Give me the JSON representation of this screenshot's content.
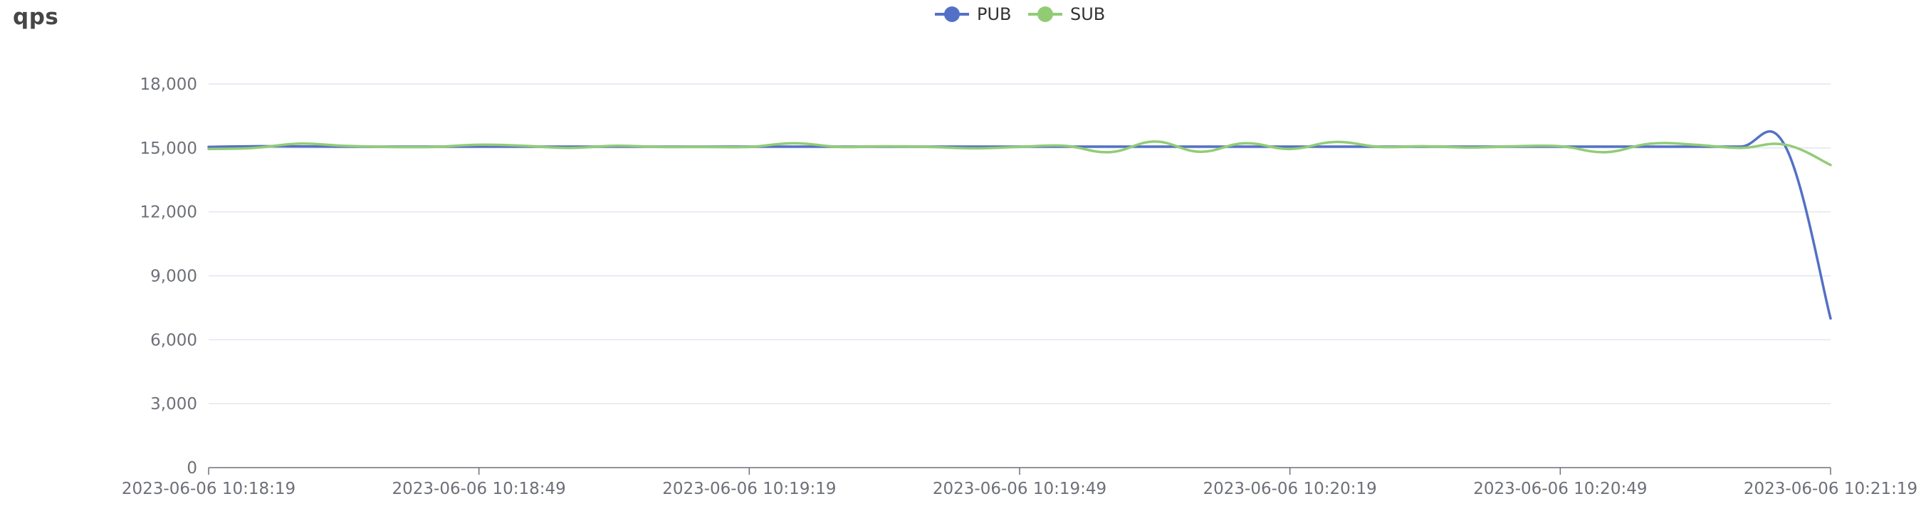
{
  "page": {
    "title": "qps"
  },
  "chart_data": {
    "type": "line",
    "title": "qps",
    "xlabel": "",
    "ylabel": "",
    "ylim": [
      0,
      18000
    ],
    "yticks": [
      0,
      3000,
      6000,
      9000,
      12000,
      15000,
      18000
    ],
    "ytick_labels": [
      "0",
      "3,000",
      "6,000",
      "9,000",
      "12,000",
      "15,000",
      "18,000"
    ],
    "x_tick_labels": [
      "2023-06-06 10:18:19",
      "2023-06-06 10:18:49",
      "2023-06-06 10:19:19",
      "2023-06-06 10:19:49",
      "2023-06-06 10:20:19",
      "2023-06-06 10:20:49",
      "2023-06-06 10:21:19"
    ],
    "x_start": "2023-06-06 10:18:19",
    "x_end": "2023-06-06 10:21:19",
    "x_interval_seconds": 5,
    "grid": true,
    "legend_position": "top-center",
    "series": [
      {
        "name": "PUB",
        "color": "#5470c6",
        "values": [
          15050,
          15080,
          15070,
          15060,
          15060,
          15060,
          15060,
          15060,
          15060,
          15060,
          15060,
          15060,
          15060,
          15060,
          15060,
          15060,
          15060,
          15060,
          15060,
          15060,
          15060,
          15060,
          15060,
          15060,
          15060,
          15060,
          15060,
          15060,
          15060,
          15060,
          15060,
          15060,
          15060,
          15060,
          15060,
          15060,
          7000
        ]
      },
      {
        "name": "SUB",
        "color": "#91cc75",
        "values": [
          14950,
          15000,
          15200,
          15100,
          15050,
          15050,
          15150,
          15100,
          15000,
          15100,
          15050,
          15050,
          15050,
          15220,
          15050,
          15080,
          15050,
          14980,
          15050,
          15100,
          14800,
          15300,
          14820,
          15220,
          14950,
          15280,
          15050,
          15080,
          15020,
          15080,
          15080,
          14800,
          15200,
          15150,
          15000,
          15150,
          14200
        ]
      }
    ]
  }
}
